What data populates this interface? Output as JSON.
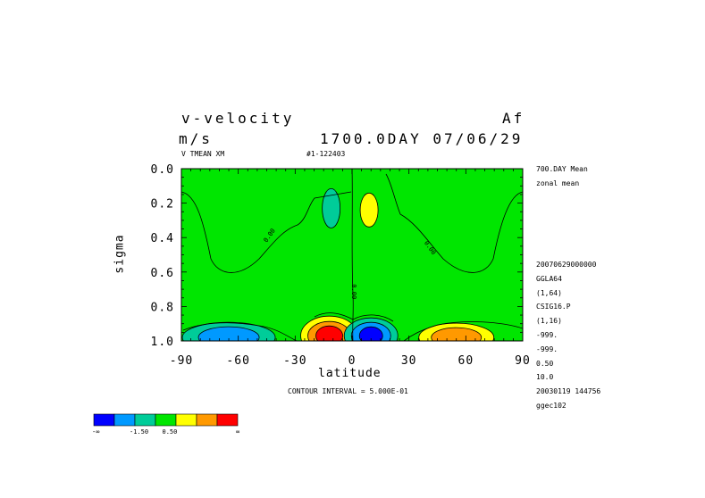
{
  "header": {
    "title": "v-velocity",
    "tag": "Af",
    "units": "m/s",
    "time": "1700.0DAY 07/06/29",
    "subtitle": "V TMEAN XM",
    "run_id": "#1-122403"
  },
  "sidebar": {
    "top": [
      "700.DAY Mean",
      "zonal mean"
    ],
    "bottom": [
      "20070629000000",
      "GGLA64",
      "(1,64)",
      "CSIG16.P",
      "(1,16)",
      "-999.",
      "-999.",
      "0.50",
      "10.0",
      "20030119 144756",
      "ggec102"
    ]
  },
  "footer": {
    "contour_interval": "CONTOUR INTERVAL = 5.000E-01"
  },
  "colorbar": {
    "colors": [
      "#0000ff",
      "#0099ff",
      "#00cc99",
      "#00e600",
      "#ffff00",
      "#ff9900",
      "#ff0000"
    ],
    "labels": [
      "-∞",
      "-1.50",
      "0.50",
      "∞"
    ]
  },
  "chart_data": {
    "type": "heatmap",
    "title": "v-velocity",
    "xlabel": "latitude",
    "ylabel": "sigma",
    "xlim": [
      -90,
      90
    ],
    "ylim": [
      1.0,
      0.0
    ],
    "x_ticks": [
      -90,
      -60,
      -30,
      0,
      30,
      60,
      90
    ],
    "x_tick_labels": [
      "-90",
      "-60",
      "-30",
      "0",
      "30",
      "60",
      "90"
    ],
    "y_ticks": [
      0.0,
      0.2,
      0.4,
      0.6,
      0.8,
      1.0
    ],
    "y_tick_labels": [
      "0.0",
      "0.2",
      "0.4",
      "0.6",
      "0.8",
      "1.0"
    ],
    "background_color": "#00e600",
    "contour_label": "0.00",
    "contour_interval": 0.5,
    "features": [
      {
        "name": "upper-south-cell",
        "lat": -11,
        "sigma": 0.23,
        "value": -0.5,
        "color": "#00cc99"
      },
      {
        "name": "upper-north-cell",
        "lat": 9,
        "sigma": 0.24,
        "value": 1.0,
        "color": "#ffff00"
      },
      {
        "name": "sfc-south-max",
        "lat": -12,
        "sigma": 0.97,
        "value": 2.5,
        "color": "#ff0000"
      },
      {
        "name": "sfc-eq-min",
        "lat": 10,
        "sigma": 0.97,
        "value": -2.0,
        "color": "#0000ff"
      },
      {
        "name": "sfc-south-min",
        "lat": -65,
        "sigma": 0.98,
        "value": -1.0,
        "color": "#0099ff"
      },
      {
        "name": "sfc-north-max",
        "lat": 55,
        "sigma": 0.98,
        "value": 1.5,
        "color": "#ff9900"
      }
    ]
  }
}
